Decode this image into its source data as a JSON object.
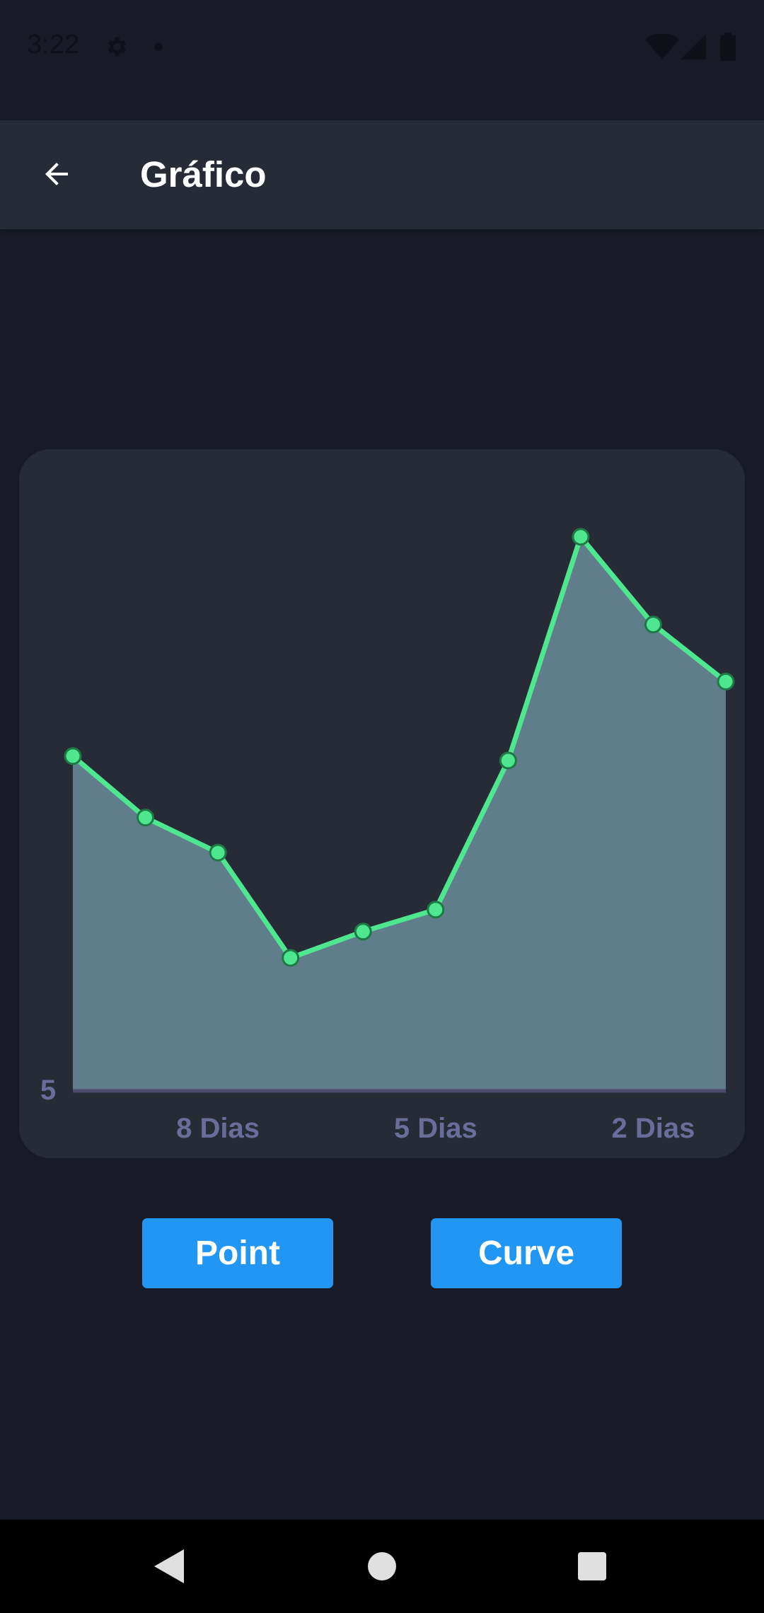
{
  "status_bar": {
    "time": "3:22",
    "icons": [
      "gear-icon",
      "notification-dot-icon",
      "wifi-icon",
      "signal-icon",
      "battery-icon"
    ]
  },
  "app_bar": {
    "back_icon": "arrow-left-icon",
    "title": "Gráfico"
  },
  "chart_data": {
    "type": "area",
    "x": [
      10,
      9,
      8,
      7,
      6,
      5,
      4,
      3,
      2,
      1
    ],
    "x_unit": "Dias",
    "values": [
      13.6,
      12.2,
      11.4,
      9.0,
      9.6,
      10.1,
      13.5,
      18.6,
      16.6,
      15.3
    ],
    "y_tick_labels": [
      {
        "value": 5,
        "label": "5"
      }
    ],
    "x_tick_labels": [
      {
        "x": 8,
        "label": "8 Dias"
      },
      {
        "x": 5,
        "label": "5 Dias"
      },
      {
        "x": 2,
        "label": "2 Dias"
      }
    ],
    "ylim": [
      6,
      19.5
    ],
    "grid": false,
    "line_color": "#4ee68f",
    "fill_color": "#607d8b",
    "point_color": "#4ee68f"
  },
  "buttons": {
    "point": "Point",
    "curve": "Curve"
  },
  "nav_bar": {
    "icons": [
      "back-triangle-icon",
      "home-circle-icon",
      "recents-square-icon"
    ]
  },
  "colors": {
    "background": "#181b25",
    "surface": "#262b35",
    "accent": "#2196f3",
    "axis_label": "#6a6d99"
  }
}
